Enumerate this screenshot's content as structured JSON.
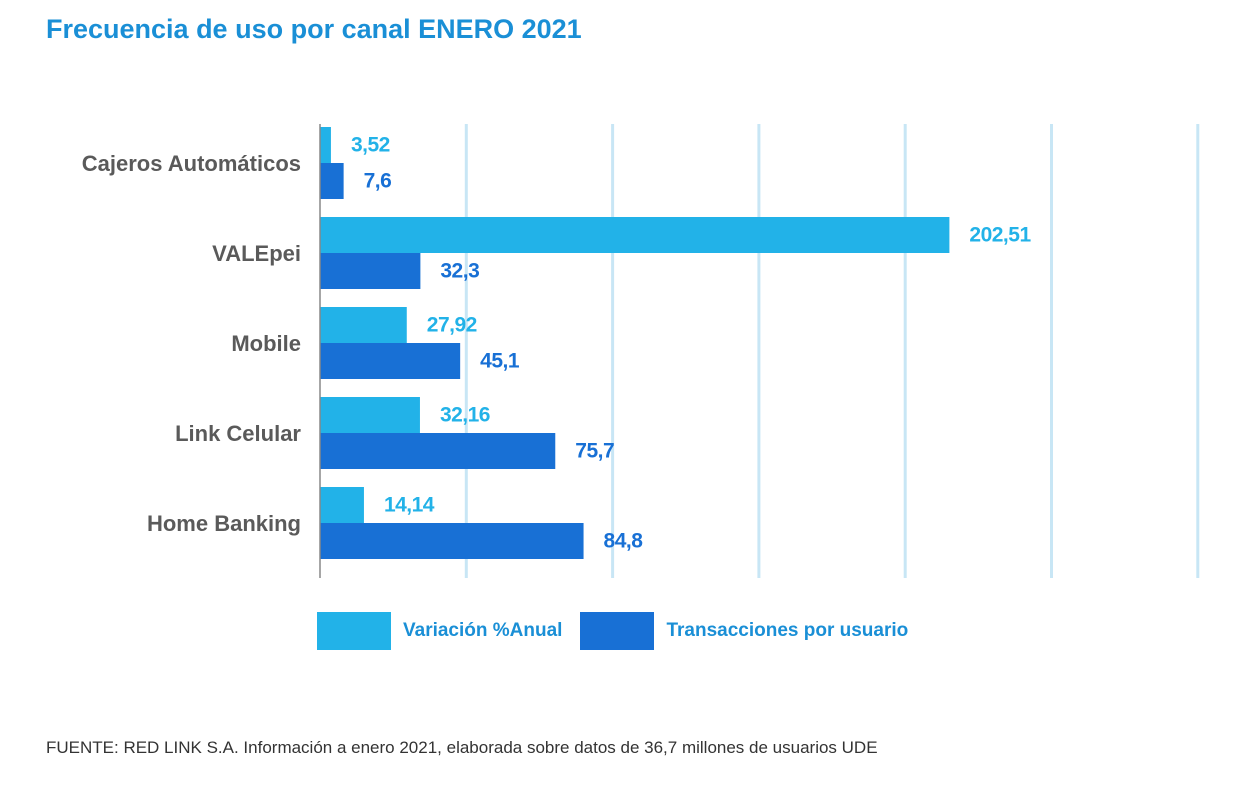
{
  "title": "Frecuencia de uso por canal ENERO 2021",
  "source": "FUENTE: RED LINK S.A. Información a enero 2021, elaborada sobre datos de 36,7 millones de usuarios UDE",
  "colors": {
    "variacion": "#22b2e8",
    "transacciones": "#1870d5",
    "grid": "#c8e6f5",
    "axis": "#888888"
  },
  "chart_data": {
    "type": "bar",
    "orientation": "horizontal",
    "title": "Frecuencia de uso por canal ENERO 2021",
    "xlabel": "",
    "ylabel": "",
    "xlim": [
      0,
      282.5
    ],
    "grid": true,
    "legend_position": "bottom",
    "categories": [
      "Cajeros Automáticos",
      "VALEpei",
      "Mobile",
      "Link Celular",
      "Home Banking"
    ],
    "series": [
      {
        "name": "Variación %Anual",
        "color": "#22b2e8",
        "values": [
          3.52,
          202.51,
          27.92,
          32.16,
          14.14
        ],
        "labels": [
          "3,52",
          "202,51",
          "27,92",
          "32,16",
          "14,14"
        ]
      },
      {
        "name": "Transacciones por usuario",
        "color": "#1870d5",
        "values": [
          7.6,
          32.3,
          45.1,
          75.7,
          84.8
        ],
        "labels": [
          "7,6",
          "32,3",
          "45,1",
          "75,7",
          "84,8"
        ]
      }
    ]
  }
}
